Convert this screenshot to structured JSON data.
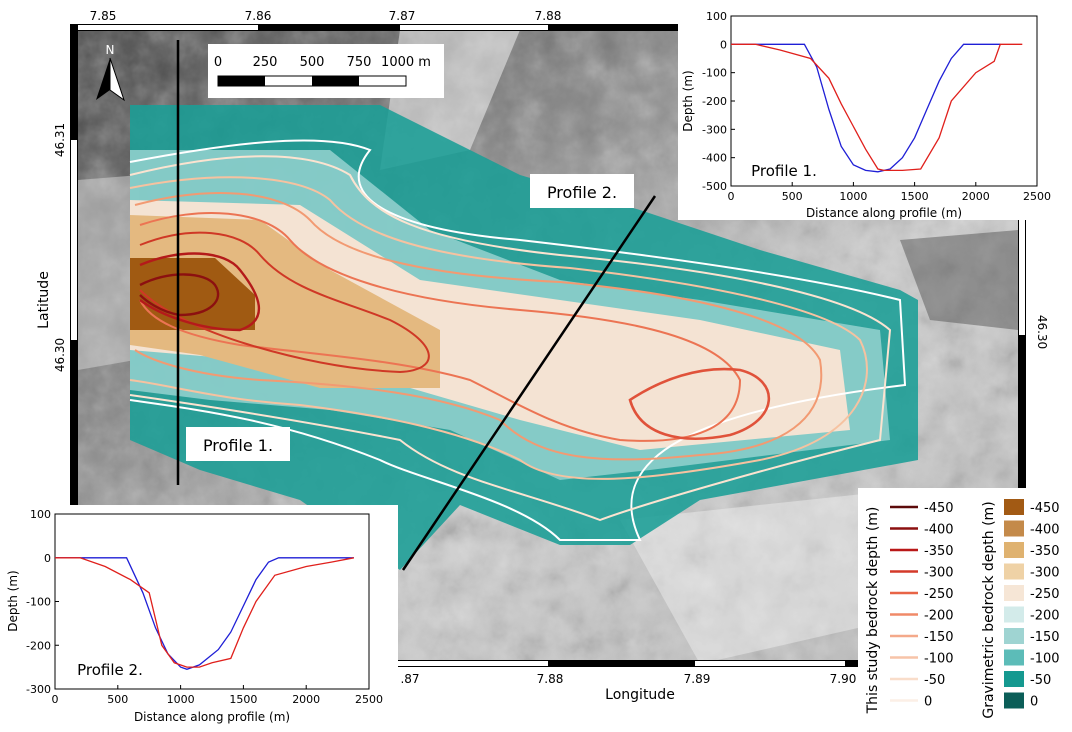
{
  "map": {
    "lon_ticks_top": [
      "7.85",
      "7.86",
      "7.87",
      "7.88"
    ],
    "lon_ticks_bottom": [
      ".87",
      "7.88",
      "7.89",
      "7.90"
    ],
    "lat_tick_upper": "46.31",
    "lat_tick_lower": "46.30",
    "lat_tick_right": "46.30",
    "x_axis_label": "Longitude",
    "y_axis_label": "Latitude",
    "north_label": "N",
    "scale_bar": {
      "labels": [
        "0",
        "250",
        "500",
        "750",
        "1000 m"
      ]
    },
    "profile_labels": {
      "p1": "Profile 1.",
      "p2": "Profile 2."
    },
    "colors": {
      "hillshade": "#9a9a9a",
      "teal": "#1a9e96",
      "sand": "#e4b980",
      "brown": "#a05a12"
    }
  },
  "legend": {
    "contour_title": "This study bedrock depth (m)",
    "grav_title": "Gravimetric bedrock depth (m)",
    "levels": [
      "-450",
      "-400",
      "-350",
      "-300",
      "-250",
      "-200",
      "-150",
      "-100",
      "-50",
      "0"
    ],
    "contour_colors": [
      "#5c0a0a",
      "#8c1010",
      "#b91818",
      "#d43a2a",
      "#e86446",
      "#f08a68",
      "#f4a98a",
      "#f7c4a8",
      "#f9ddca",
      "#fcefe6"
    ],
    "grav_colors": [
      "#a25a14",
      "#c48a4a",
      "#dfb270",
      "#efd2a6",
      "#f6e6d6",
      "#d3ebea",
      "#9fd4d2",
      "#5cbcb8",
      "#159990",
      "#0b5e58"
    ]
  },
  "chart_data": [
    {
      "type": "line",
      "title": "Profile 1.",
      "xlabel": "Distance along profile (m)",
      "ylabel": "Depth (m)",
      "xlim": [
        0,
        2500
      ],
      "ylim": [
        -500,
        100
      ],
      "xticks": [
        "0",
        "500",
        "1000",
        "1500",
        "2000",
        "2500"
      ],
      "yticks": [
        "100",
        "0",
        "-100",
        "-200",
        "-300",
        "-400",
        "-500"
      ],
      "series": [
        {
          "color": "#1f1fd6",
          "x": [
            0,
            600,
            700,
            800,
            900,
            1000,
            1100,
            1200,
            1300,
            1400,
            1500,
            1600,
            1700,
            1800,
            1900,
            2200
          ],
          "y": [
            0,
            0,
            -80,
            -230,
            -360,
            -425,
            -445,
            -450,
            -440,
            -400,
            -330,
            -230,
            -130,
            -50,
            0,
            0
          ]
        },
        {
          "color": "#e0201c",
          "x": [
            0,
            200,
            400,
            650,
            800,
            900,
            1000,
            1100,
            1200,
            1250,
            1400,
            1550,
            1700,
            1800,
            2000,
            2150,
            2200,
            2380
          ],
          "y": [
            0,
            0,
            -20,
            -50,
            -120,
            -210,
            -290,
            -370,
            -440,
            -445,
            -445,
            -440,
            -330,
            -200,
            -100,
            -60,
            0,
            0
          ]
        }
      ]
    },
    {
      "type": "line",
      "title": "Profile 2.",
      "xlabel": "Distance along profile (m)",
      "ylabel": "Depth (m)",
      "xlim": [
        0,
        2500
      ],
      "ylim": [
        -300,
        100
      ],
      "xticks": [
        "0",
        "500",
        "1000",
        "1500",
        "2000",
        "2500"
      ],
      "yticks": [
        "100",
        "0",
        "-100",
        "-200",
        "-300"
      ],
      "series": [
        {
          "color": "#1f1fd6",
          "x": [
            0,
            570,
            700,
            800,
            900,
            1000,
            1050,
            1150,
            1300,
            1400,
            1500,
            1600,
            1700,
            1780,
            2380
          ],
          "y": [
            0,
            0,
            -80,
            -160,
            -220,
            -250,
            -255,
            -245,
            -210,
            -170,
            -110,
            -50,
            -10,
            0,
            0
          ]
        },
        {
          "color": "#e0201c",
          "x": [
            0,
            200,
            400,
            600,
            750,
            850,
            950,
            1050,
            1150,
            1250,
            1400,
            1500,
            1600,
            1750,
            2000,
            2200,
            2380
          ],
          "y": [
            0,
            0,
            -20,
            -50,
            -80,
            -200,
            -240,
            -250,
            -250,
            -240,
            -230,
            -160,
            -100,
            -40,
            -20,
            -10,
            0
          ]
        }
      ]
    }
  ]
}
